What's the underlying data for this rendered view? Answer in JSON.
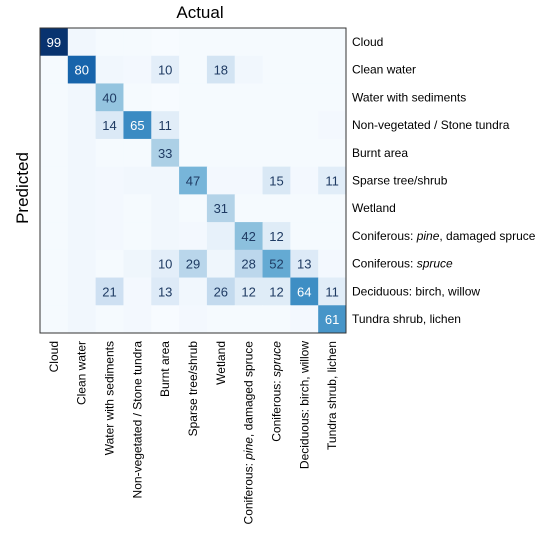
{
  "chart_data": {
    "type": "heatmap",
    "title": "Actual",
    "xlabel": "",
    "ylabel": "Predicted",
    "columns": [
      {
        "parts": [
          {
            "text": "Cloud",
            "italic": false
          }
        ]
      },
      {
        "parts": [
          {
            "text": "Clean water",
            "italic": false
          }
        ]
      },
      {
        "parts": [
          {
            "text": "Water with sediments",
            "italic": false
          }
        ]
      },
      {
        "parts": [
          {
            "text": "Non-vegetated / Stone tundra",
            "italic": false
          }
        ]
      },
      {
        "parts": [
          {
            "text": "Burnt area",
            "italic": false
          }
        ]
      },
      {
        "parts": [
          {
            "text": "Sparse tree/shrub",
            "italic": false
          }
        ]
      },
      {
        "parts": [
          {
            "text": "Wetland",
            "italic": false
          }
        ]
      },
      {
        "parts": [
          {
            "text": "Coniferous: ",
            "italic": false
          },
          {
            "text": "pine",
            "italic": true
          },
          {
            "text": ", damaged spruce",
            "italic": false
          }
        ]
      },
      {
        "parts": [
          {
            "text": "Coniferous: ",
            "italic": false
          },
          {
            "text": "spruce",
            "italic": true
          }
        ]
      },
      {
        "parts": [
          {
            "text": "Deciduous: birch, willow",
            "italic": false
          }
        ]
      },
      {
        "parts": [
          {
            "text": "Tundra shrub, lichen",
            "italic": false
          }
        ]
      }
    ],
    "rows": [
      {
        "parts": [
          {
            "text": "Cloud",
            "italic": false
          }
        ]
      },
      {
        "parts": [
          {
            "text": "Clean water",
            "italic": false
          }
        ]
      },
      {
        "parts": [
          {
            "text": "Water with sediments",
            "italic": false
          }
        ]
      },
      {
        "parts": [
          {
            "text": "Non-vegetated / Stone tundra",
            "italic": false
          }
        ]
      },
      {
        "parts": [
          {
            "text": "Burnt area",
            "italic": false
          }
        ]
      },
      {
        "parts": [
          {
            "text": "Sparse tree/shrub",
            "italic": false
          }
        ]
      },
      {
        "parts": [
          {
            "text": "Wetland",
            "italic": false
          }
        ]
      },
      {
        "parts": [
          {
            "text": "Coniferous: ",
            "italic": false
          },
          {
            "text": "pine",
            "italic": true
          },
          {
            "text": ", damaged spruce",
            "italic": false
          }
        ]
      },
      {
        "parts": [
          {
            "text": "Coniferous: ",
            "italic": false
          },
          {
            "text": "spruce",
            "italic": true
          }
        ]
      },
      {
        "parts": [
          {
            "text": "Deciduous: birch, willow",
            "italic": false
          }
        ]
      },
      {
        "parts": [
          {
            "text": "Tundra shrub, lichen",
            "italic": false
          }
        ]
      }
    ],
    "values": [
      [
        99,
        3,
        1,
        1,
        0,
        1,
        1,
        1,
        1,
        1,
        1
      ],
      [
        1,
        80,
        3,
        2,
        10,
        1,
        18,
        3,
        1,
        1,
        1
      ],
      [
        1,
        3,
        40,
        1,
        0,
        1,
        1,
        1,
        1,
        1,
        1
      ],
      [
        1,
        3,
        14,
        65,
        11,
        1,
        1,
        1,
        1,
        1,
        2
      ],
      [
        1,
        3,
        1,
        1,
        33,
        1,
        1,
        1,
        1,
        1,
        1
      ],
      [
        1,
        3,
        2,
        3,
        3,
        47,
        2,
        2,
        15,
        2,
        11
      ],
      [
        1,
        3,
        2,
        1,
        3,
        1,
        31,
        1,
        1,
        1,
        1
      ],
      [
        1,
        3,
        2,
        1,
        3,
        2,
        8,
        42,
        12,
        1,
        1
      ],
      [
        1,
        3,
        1,
        4,
        10,
        29,
        4,
        28,
        52,
        13,
        2
      ],
      [
        1,
        3,
        21,
        2,
        13,
        3,
        26,
        12,
        12,
        64,
        11
      ],
      [
        1,
        3,
        1,
        2,
        0,
        2,
        1,
        1,
        1,
        2,
        61
      ]
    ],
    "labeled_threshold": 10,
    "color_low": "#f7fbff",
    "color_high": "#08306b",
    "vmin": 0,
    "vmax": 100,
    "grid": false,
    "legend": "none"
  }
}
